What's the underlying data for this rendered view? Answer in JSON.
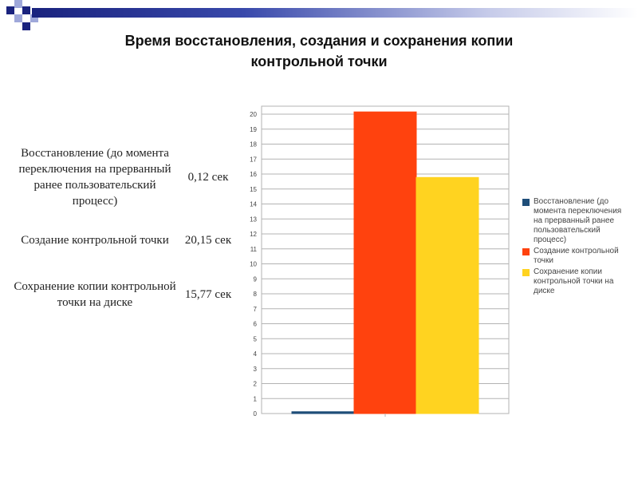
{
  "slide": {
    "title_line1": "Время восстановления, создания и сохранения копии",
    "title_line2": "контрольной точки",
    "colors": {
      "band_dark": "#1a237e",
      "band_light": "#9fa8da"
    }
  },
  "table": {
    "rows": [
      {
        "label": "Восстановление (до момента переключения на прерванный ранее пользовательский процесс)",
        "value": "0,12 сек"
      },
      {
        "label": "Создание контрольной точки",
        "value": "20,15 сек"
      },
      {
        "label": "Сохранение копии контрольной точки на диске",
        "value": "15,77 сек"
      }
    ]
  },
  "chart_data": {
    "type": "bar",
    "categories": [
      ""
    ],
    "series": [
      {
        "name": "Восстановление (до момента переключения на прерванный ранее пользовательский процесс)",
        "values": [
          0.12
        ],
        "color": "#1f4e79"
      },
      {
        "name": "Создание контрольной точки",
        "values": [
          20.15
        ],
        "color": "#ff420e"
      },
      {
        "name": "Сохранение копии контрольной точки на диске",
        "values": [
          15.77
        ],
        "color": "#ffd320"
      }
    ],
    "ylim": [
      0,
      20
    ],
    "yticks": [
      0,
      1,
      2,
      3,
      4,
      5,
      6,
      7,
      8,
      9,
      10,
      11,
      12,
      13,
      14,
      15,
      16,
      17,
      18,
      19,
      20
    ],
    "grid": true,
    "legend_position": "right"
  }
}
